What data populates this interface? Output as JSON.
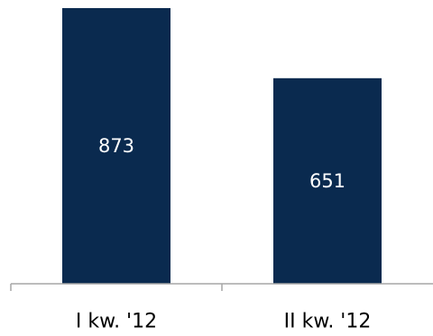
{
  "chart_data": {
    "type": "bar",
    "categories": [
      "I kw. '12",
      "II kw. '12"
    ],
    "values": [
      873,
      651
    ],
    "data_labels": [
      "873",
      "651"
    ],
    "title": "",
    "xlabel": "",
    "ylabel": "",
    "ylim": [
      0,
      873
    ],
    "grid": false,
    "legend": "none",
    "bar_color": "#0a2a4f"
  }
}
